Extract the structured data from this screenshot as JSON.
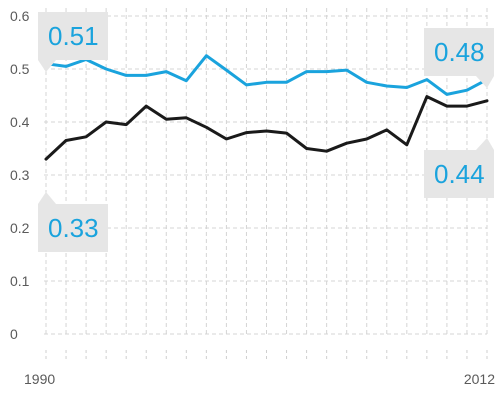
{
  "chart_data": {
    "type": "line",
    "title": "",
    "xlabel": "",
    "ylabel": "",
    "x": [
      1990,
      1991,
      1992,
      1993,
      1994,
      1995,
      1996,
      1997,
      1998,
      1999,
      2000,
      2001,
      2002,
      2003,
      2004,
      2005,
      2006,
      2007,
      2008,
      2009,
      2010,
      2011,
      2012
    ],
    "series": [
      {
        "color": "#1aa3dd",
        "values": [
          0.51,
          0.505,
          0.518,
          0.5,
          0.488,
          0.488,
          0.495,
          0.478,
          0.525,
          0.498,
          0.47,
          0.475,
          0.475,
          0.495,
          0.495,
          0.498,
          0.475,
          0.468,
          0.465,
          0.48,
          0.452,
          0.46,
          0.48
        ]
      },
      {
        "color": "#1a1a1a",
        "values": [
          0.33,
          0.365,
          0.372,
          0.4,
          0.395,
          0.43,
          0.405,
          0.408,
          0.39,
          0.368,
          0.38,
          0.383,
          0.379,
          0.35,
          0.345,
          0.36,
          0.368,
          0.385,
          0.357,
          0.448,
          0.43,
          0.43,
          0.44
        ]
      }
    ],
    "yticks": [
      "0",
      "0.1",
      "0.2",
      "0.3",
      "0.4",
      "0.5",
      "0.6"
    ],
    "xticks": [
      "1990",
      "2012"
    ],
    "ylim": [
      0,
      0.6
    ],
    "xlim": [
      1990,
      2012
    ],
    "grid": true,
    "legend": "none",
    "annotations": [
      {
        "text": "0.51",
        "series": 0,
        "x": 1990
      },
      {
        "text": "0.48",
        "series": 0,
        "x": 2012
      },
      {
        "text": "0.33",
        "series": 1,
        "x": 1990
      },
      {
        "text": "0.44",
        "series": 1,
        "x": 2012
      }
    ]
  }
}
